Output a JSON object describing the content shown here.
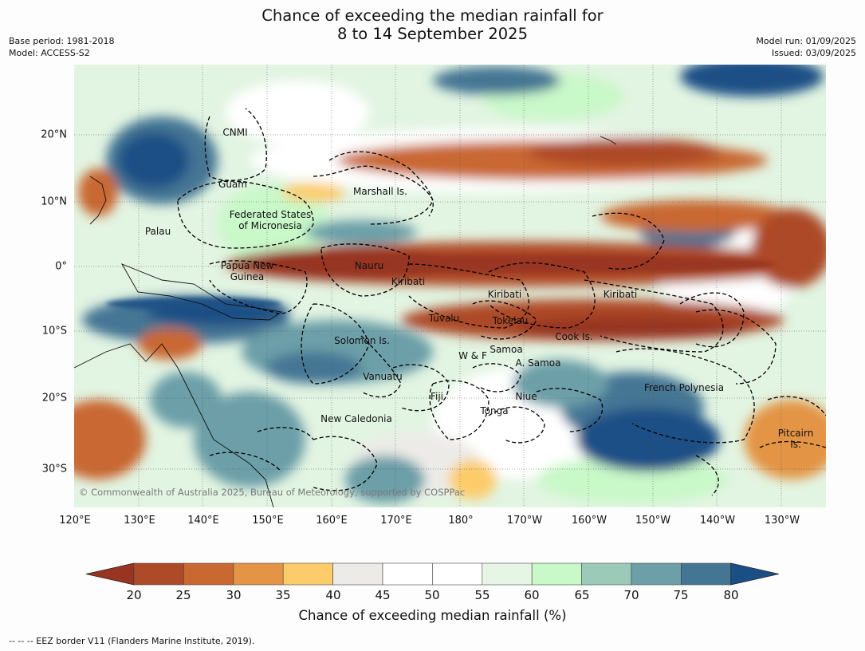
{
  "title_line1": "Chance of exceeding the median rainfall for",
  "title_line2": "8 to 14 September 2025",
  "base_period": "Base period: 1981-2018",
  "model": "Model: ACCESS-S2",
  "model_run": "Model run: 01/09/2025",
  "issued": "Issued: 03/09/2025",
  "lon_labels": [
    "120°E",
    "130°E",
    "140°E",
    "150°E",
    "160°E",
    "170°E",
    "180°",
    "170°W",
    "160°W",
    "150°W",
    "140°W",
    "130°W"
  ],
  "lat_labels": [
    "20°N",
    "10°N",
    "0°",
    "10°S",
    "20°S",
    "30°S"
  ],
  "regions": {
    "cnmi": "CNMI",
    "guam": "Guam",
    "marshall": "Marshall Is.",
    "fsm_1": "Federated States",
    "fsm_2": "of Micronesia",
    "palau": "Palau",
    "png_1": "Papua New",
    "png_2": "Guinea",
    "nauru": "Nauru",
    "kiribati_w": "Kiribati",
    "kiribati_c": "Kiribati",
    "kiribati_e": "Kiribati",
    "tuvalu": "Tuvalu",
    "tokelau": "Tokelau",
    "cook": "Cook Is.",
    "solomon": "Solomon Is.",
    "wf": "W & F",
    "samoa": "Samoa",
    "asamoa": "A. Samoa",
    "vanuatu": "Vanuatu",
    "fiji": "Fiji",
    "niue": "Niue",
    "tonga": "Tonga",
    "french_polynesia": "French Polynesia",
    "new_caledonia": "New Caledonia",
    "pitcairn_1": "Pitcairn",
    "pitcairn_2": "Is."
  },
  "copyright": "© Commonwealth of Australia 2025, Bureau of Meteorology, supported by COSPPac",
  "colorbar": {
    "ticks": [
      "20",
      "25",
      "30",
      "35",
      "40",
      "45",
      "50",
      "55",
      "60",
      "65",
      "70",
      "75",
      "80"
    ],
    "colors": [
      "#983520",
      "#ad4a28",
      "#c96830",
      "#e39444",
      "#fccc6a",
      "#ecebe7",
      "#ffffff",
      "#ffffff",
      "#e6f5e6",
      "#c9f8c9",
      "#9ccab8",
      "#6c9fa8",
      "#447694",
      "#1a4f85"
    ],
    "label": "Chance of exceeding median rainfall (%)"
  },
  "footer": "--  --  -- EEZ border V11 (Flanders Marine Institute, 2019)."
}
